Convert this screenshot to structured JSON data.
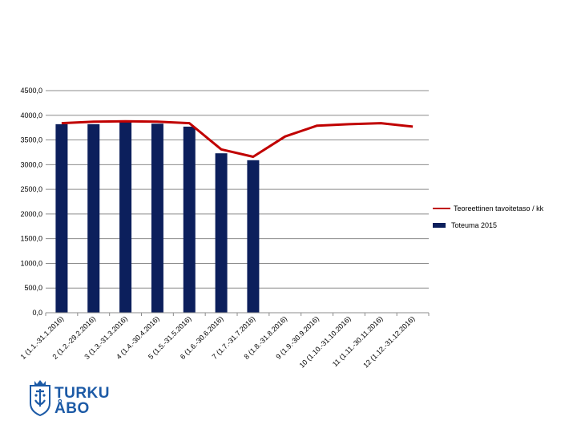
{
  "chart_data": {
    "type": "bar",
    "title": "",
    "xlabel": "",
    "ylabel": "",
    "ylim": [
      0,
      4500
    ],
    "y_ticks": [
      "0,0",
      "500,0",
      "1000,0",
      "1500,0",
      "2000,0",
      "2500,0",
      "3000,0",
      "3500,0",
      "4000,0",
      "4500,0"
    ],
    "categories": [
      "1 (1.1.-31.1.2016)",
      "2 (1.2.-29.2.2016)",
      "3 (1.3.-31.3.2016)",
      "4 (1.4.-30.4.2016)",
      "5 (1.5.-31.5.2016)",
      "6 (1.6.-30.6.2016)",
      "7 (1.7.-31.7.2016)",
      "8 (1.8.-31.8.2016)",
      "9 (1.9.-30.9.2016)",
      "10 (1.10.-31.10.2016)",
      "11 (1.11.-30.11.2016)",
      "12 (1.12.-31.12.2016)"
    ],
    "series": [
      {
        "name": "Teoreettinen tavoitetaso / kk",
        "kind": "line",
        "color": "#c00000",
        "values": [
          3840,
          3870,
          3880,
          3870,
          3840,
          3310,
          3160,
          3570,
          3790,
          3820,
          3840,
          3770
        ]
      },
      {
        "name": "Toteuma 2015",
        "kind": "bar",
        "color": "#0c1f5c",
        "values": [
          3820,
          3820,
          3880,
          3830,
          3770,
          3230,
          3090,
          null,
          null,
          null,
          null,
          null
        ]
      }
    ],
    "grid": true,
    "legend_position": "right"
  },
  "logo": {
    "line1": "TURKU",
    "line2": "ÅBO",
    "color": "#1c5aa6"
  }
}
